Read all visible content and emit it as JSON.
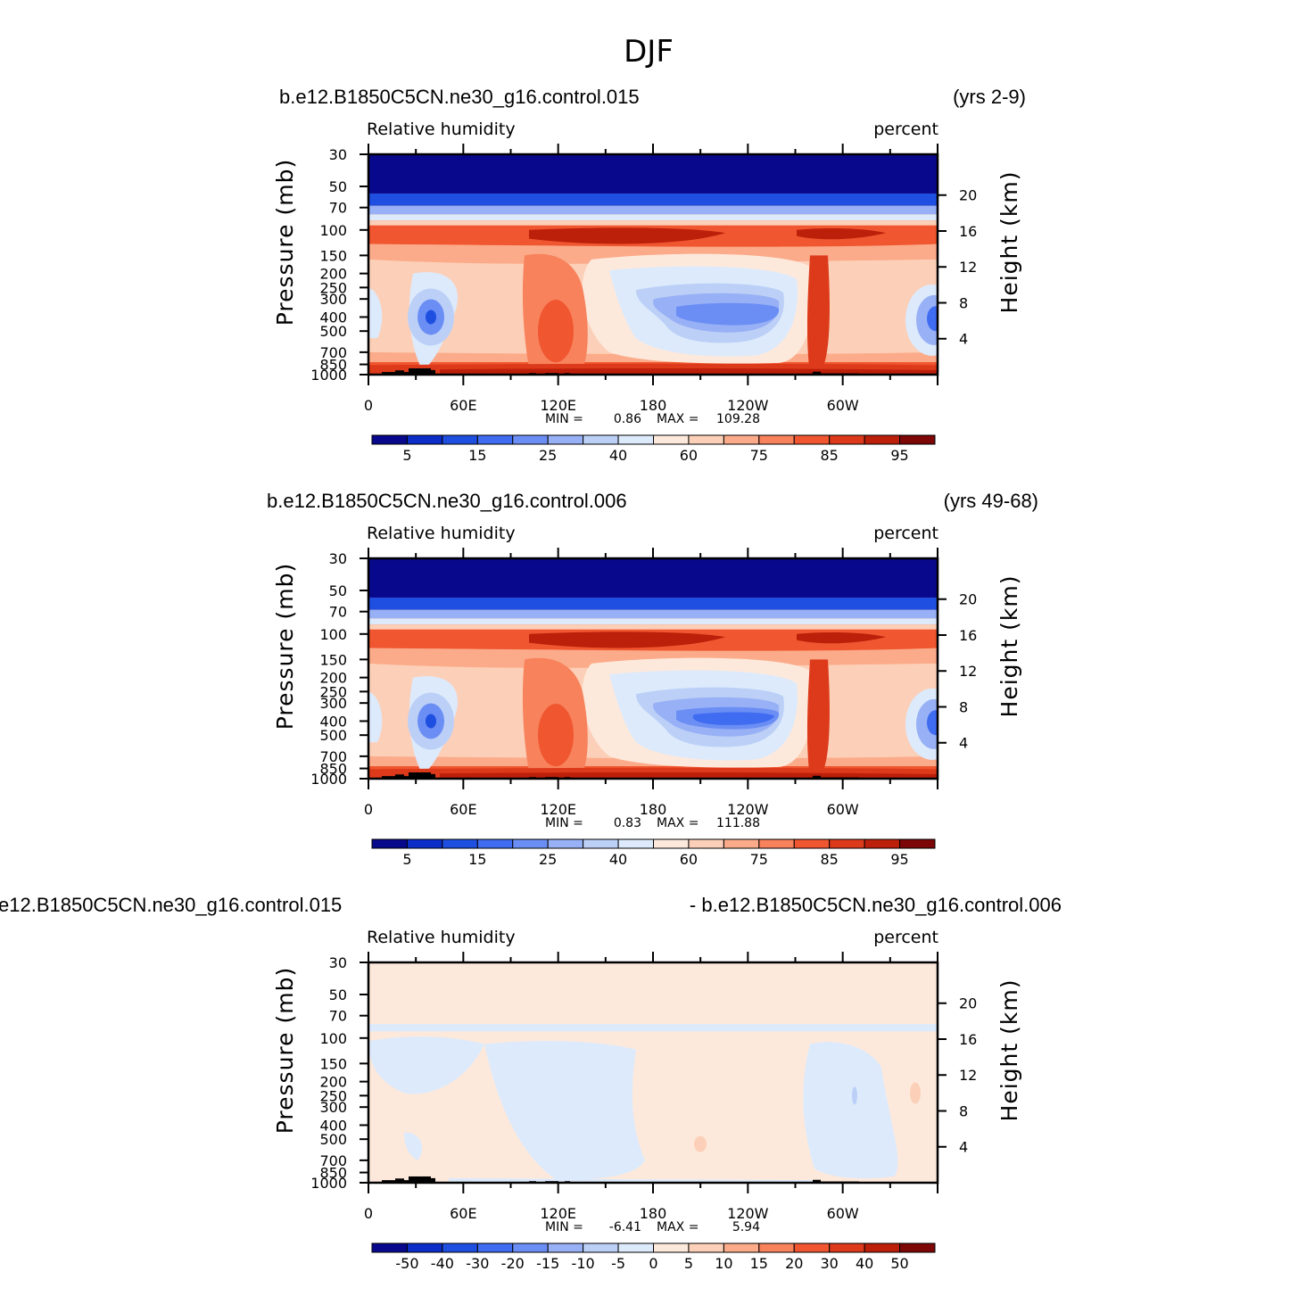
{
  "figure_title": "DJF",
  "panels": [
    {
      "case_left": "b.e12.B1850C5CN.ne30_g16.control.015",
      "case_right": "(yrs 2-9)",
      "var_label": "Relative humidity",
      "units_label": "percent",
      "stats": {
        "min_label": "MIN =",
        "min": "0.86",
        "max_label": "MAX =",
        "max": "109.28"
      },
      "palette": "full",
      "colorbar_labels": [
        "5",
        "15",
        "25",
        "40",
        "60",
        "75",
        "85",
        "95"
      ]
    },
    {
      "case_left": "b.e12.B1850C5CN.ne30_g16.control.006",
      "case_right": "(yrs 49-68)",
      "var_label": "Relative humidity",
      "units_label": "percent",
      "stats": {
        "min_label": "MIN =",
        "min": "0.83",
        "max_label": "MAX =",
        "max": "111.88"
      },
      "palette": "full",
      "colorbar_labels": [
        "5",
        "15",
        "25",
        "40",
        "60",
        "75",
        "85",
        "95"
      ]
    },
    {
      "case_left": "e12.B1850C5CN.ne30_g16.control.015",
      "case_right": "- b.e12.B1850C5CN.ne30_g16.control.006",
      "var_label": "Relative humidity",
      "units_label": "percent",
      "stats": {
        "min_label": "MIN =",
        "min": "-6.41",
        "max_label": "MAX =",
        "max": "5.94"
      },
      "palette": "diff",
      "colorbar_labels": [
        "-50",
        "-40",
        "-30",
        "-20",
        "-15",
        "-10",
        "-5",
        "0",
        "5",
        "10",
        "15",
        "20",
        "30",
        "40",
        "50"
      ]
    }
  ],
  "axes": {
    "ylabel_left": "Pressure (mb)",
    "ylabel_right": "Height (km)",
    "pressure_ticks": [
      "30",
      "50",
      "70",
      "100",
      "150",
      "200",
      "250",
      "300",
      "400",
      "500",
      "700",
      "850",
      "1000"
    ],
    "height_ticks": [
      "20",
      "16",
      "12",
      "8",
      "4"
    ],
    "lon_ticks": [
      "0",
      "60E",
      "120E",
      "180",
      "120W",
      "60W"
    ]
  },
  "colors": {
    "full_palette": [
      "#08088c",
      "#0c2dc8",
      "#1f4fe0",
      "#3f6cf0",
      "#6b8ef5",
      "#98b0f5",
      "#bcd0f7",
      "#dceafc",
      "#fde9dc",
      "#fcd0b8",
      "#fbab8a",
      "#f7825c",
      "#f0562f",
      "#dc3a1a",
      "#bc1f0a",
      "#7d0606"
    ],
    "diff_palette": [
      "#08088c",
      "#0c2dc8",
      "#1f4fe0",
      "#3f6cf0",
      "#6b8ef5",
      "#98b0f5",
      "#bcd0f7",
      "#dceafc",
      "#fde9dc",
      "#fcd0b8",
      "#fbab8a",
      "#f7825c",
      "#f0562f",
      "#dc3a1a",
      "#bc1f0a",
      "#7d0606"
    ],
    "topography": "#000000"
  },
  "chart_data": [
    {
      "type": "heatmap",
      "title": "Relative humidity",
      "xlabel": "",
      "ylabel": "Pressure (mb)",
      "y2label": "Height (km)",
      "x_ticks": [
        "0",
        "60E",
        "120E",
        "180",
        "120W",
        "60W"
      ],
      "y_ticks": [
        30,
        50,
        70,
        100,
        150,
        200,
        250,
        300,
        400,
        500,
        700,
        850,
        1000
      ],
      "y_log_scale": true,
      "ylim": [
        1000,
        30
      ],
      "levels": [
        5,
        10,
        15,
        20,
        25,
        30,
        40,
        50,
        60,
        70,
        75,
        80,
        85,
        90,
        95
      ],
      "min": 0.86,
      "max": 109.28
    },
    {
      "type": "heatmap",
      "title": "Relative humidity",
      "xlabel": "",
      "ylabel": "Pressure (mb)",
      "y2label": "Height (km)",
      "x_ticks": [
        "0",
        "60E",
        "120E",
        "180",
        "120W",
        "60W"
      ],
      "y_ticks": [
        30,
        50,
        70,
        100,
        150,
        200,
        250,
        300,
        400,
        500,
        700,
        850,
        1000
      ],
      "y_log_scale": true,
      "ylim": [
        1000,
        30
      ],
      "levels": [
        5,
        10,
        15,
        20,
        25,
        30,
        40,
        50,
        60,
        70,
        75,
        80,
        85,
        90,
        95
      ],
      "min": 0.83,
      "max": 111.88
    },
    {
      "type": "heatmap",
      "title": "Relative humidity",
      "xlabel": "",
      "ylabel": "Pressure (mb)",
      "y2label": "Height (km)",
      "x_ticks": [
        "0",
        "60E",
        "120E",
        "180",
        "120W",
        "60W"
      ],
      "y_ticks": [
        30,
        50,
        70,
        100,
        150,
        200,
        250,
        300,
        400,
        500,
        700,
        850,
        1000
      ],
      "y_log_scale": true,
      "ylim": [
        1000,
        30
      ],
      "levels": [
        -50,
        -40,
        -30,
        -20,
        -15,
        -10,
        -5,
        0,
        5,
        10,
        15,
        20,
        30,
        40,
        50
      ],
      "min": -6.41,
      "max": 5.94
    }
  ]
}
